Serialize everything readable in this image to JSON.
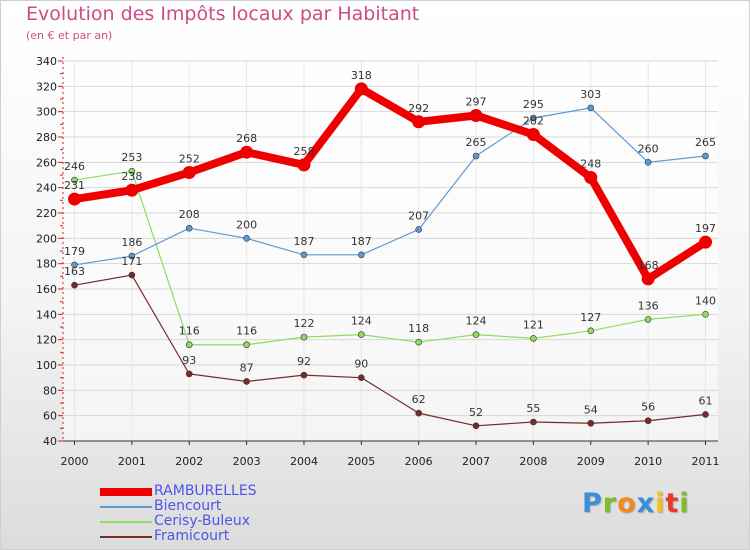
{
  "page": {
    "title": "Evolution des Impôts locaux par Habitant",
    "subtitle": "(en € et par an)",
    "logo_text": "Proxiti",
    "logo_colors": [
      "#3a8fd8",
      "#7bbf2a",
      "#f08a1c",
      "#3a8fd8",
      "#f0c020",
      "#e63a2a",
      "#7bbf2a"
    ]
  },
  "chart_data": {
    "type": "line",
    "title": "Evolution des Impôts locaux par Habitant",
    "subtitle": "(en € et par an)",
    "xlabel": "",
    "ylabel": "",
    "x": [
      "2000",
      "2001",
      "2002",
      "2003",
      "2004",
      "2005",
      "2006",
      "2007",
      "2008",
      "2009",
      "2010",
      "2011"
    ],
    "ylim": [
      40,
      340
    ],
    "yticks": [
      40,
      60,
      80,
      100,
      120,
      140,
      160,
      180,
      200,
      220,
      240,
      260,
      280,
      300,
      320,
      340
    ],
    "grid": true,
    "legend_position": "bottom-left",
    "series": [
      {
        "name": "RAMBURELLES",
        "color": "#ee0000",
        "values": [
          231,
          238,
          252,
          268,
          258,
          318,
          292,
          297,
          282,
          248,
          168,
          197
        ],
        "labels": [
          "231",
          "238",
          "252",
          "268",
          "258",
          "318",
          "292",
          "297",
          "282",
          "248",
          "168",
          "197"
        ]
      },
      {
        "name": "Biencourt",
        "color": "#5b9bd5",
        "values": [
          179,
          186,
          208,
          200,
          187,
          187,
          207,
          265,
          295,
          303,
          260,
          265
        ],
        "labels": [
          "179",
          "186",
          "208",
          "200",
          "187",
          "187",
          "207",
          "265",
          "295",
          "303",
          "260",
          "265"
        ]
      },
      {
        "name": "Cerisy-Buleux",
        "color": "#8fdc5f",
        "values": [
          246,
          253,
          116,
          116,
          122,
          124,
          118,
          124,
          121,
          127,
          136,
          140
        ],
        "labels": [
          "246",
          "253",
          "116",
          "116",
          "122",
          "124",
          "118",
          "124",
          "121",
          "127",
          "136",
          "140"
        ]
      },
      {
        "name": "Framicourt",
        "color": "#7a2a2a",
        "values": [
          163,
          171,
          93,
          87,
          92,
          90,
          62,
          52,
          55,
          54,
          56,
          61
        ],
        "labels": [
          "163",
          "171",
          "93",
          "87",
          "92",
          "90",
          "62",
          "52",
          "55",
          "54",
          "56",
          "61"
        ]
      }
    ]
  }
}
